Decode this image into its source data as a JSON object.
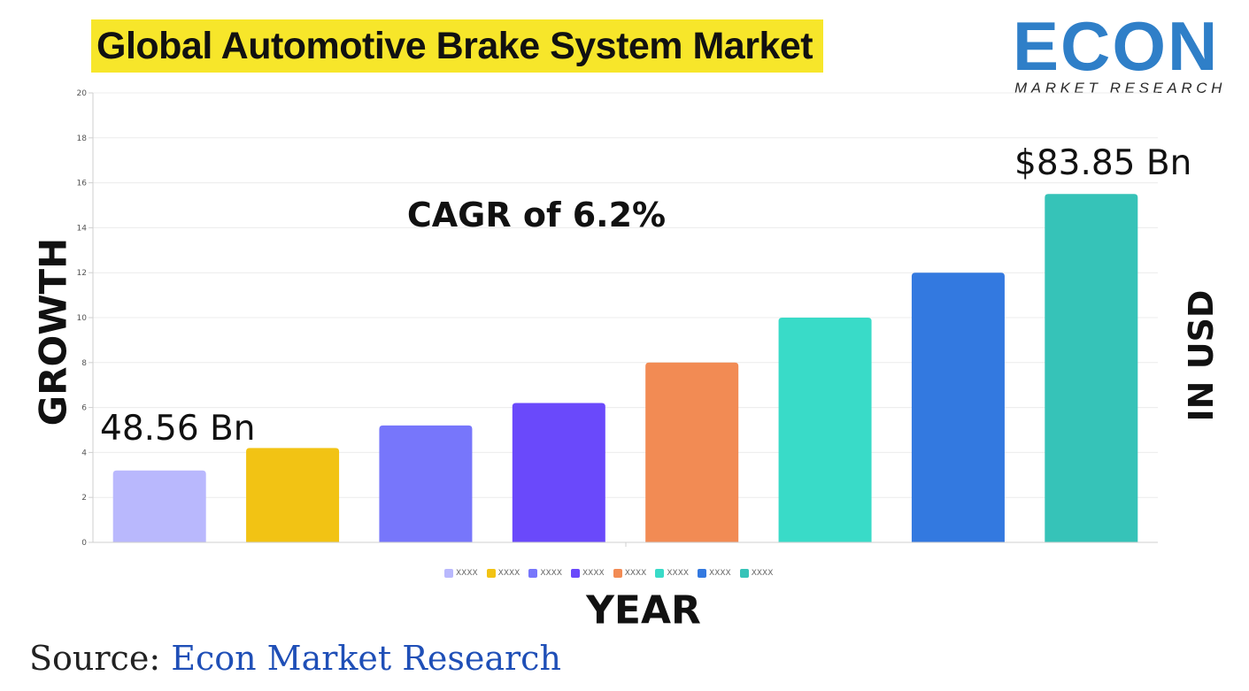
{
  "header": {
    "title": "Global Automotive Brake System Market"
  },
  "logo": {
    "word": "ECON",
    "subtitle": "MARKET RESEARCH"
  },
  "axis_labels": {
    "y_left": "GROWTH",
    "y_right": "IN USD",
    "x": "YEAR"
  },
  "annotations": {
    "cagr": "CAGR of 6.2%",
    "start_value": "48.56 Bn",
    "end_value": "$83.85 Bn"
  },
  "source": {
    "prefix": "Source: ",
    "name": "Econ Market Research"
  },
  "legend": [
    {
      "label": "XXXX",
      "color": "#b9b8fd"
    },
    {
      "label": "XXXX",
      "color": "#f2c314"
    },
    {
      "label": "XXXX",
      "color": "#7776fb"
    },
    {
      "label": "XXXX",
      "color": "#6a49fb"
    },
    {
      "label": "XXXX",
      "color": "#f28b54"
    },
    {
      "label": "XXXX",
      "color": "#39dbc8"
    },
    {
      "label": "XXXX",
      "color": "#3379e0"
    },
    {
      "label": "XXXX",
      "color": "#36c3b8"
    }
  ],
  "chart_data": {
    "type": "bar",
    "title": "Global Automotive Brake System Market",
    "xlabel": "YEAR",
    "ylabel": "GROWTH",
    "ylim": [
      0,
      20
    ],
    "yticks": [
      0,
      2,
      4,
      6,
      8,
      10,
      12,
      14,
      16,
      18,
      20
    ],
    "grid": true,
    "legend_position": "bottom",
    "categories": [
      "XXXX",
      "XXXX",
      "XXXX",
      "XXXX",
      "XXXX",
      "XXXX",
      "XXXX",
      "XXXX"
    ],
    "values": [
      3.2,
      4.2,
      5.2,
      6.2,
      8.0,
      10.0,
      12.0,
      15.5
    ],
    "colors": [
      "#b9b8fd",
      "#f2c314",
      "#7776fb",
      "#6a49fb",
      "#f28b54",
      "#39dbc8",
      "#3379e0",
      "#36c3b8"
    ]
  }
}
